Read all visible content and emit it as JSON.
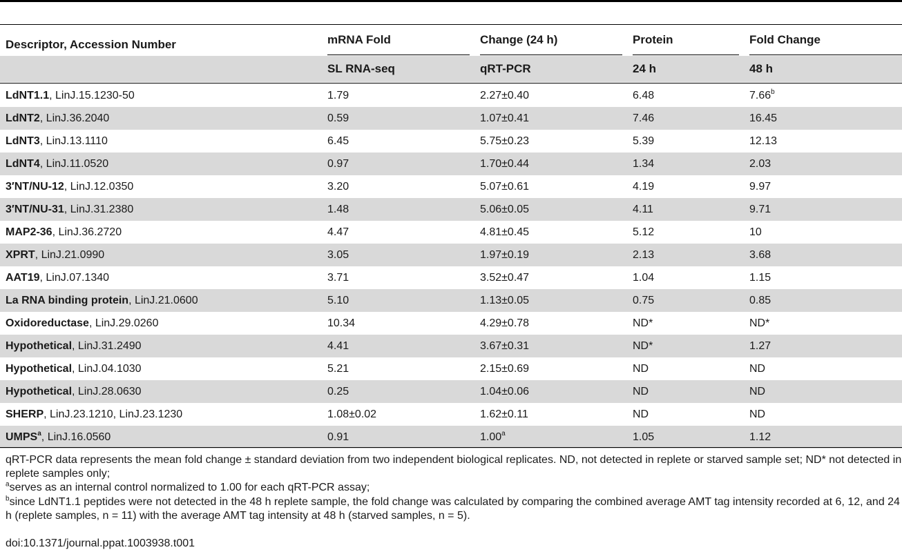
{
  "header": {
    "col0": "Descriptor, Accession Number",
    "group1_a": "mRNA Fold",
    "group1_b": "Change (24 h)",
    "group2_a": "Protein",
    "group2_b": "Fold Change",
    "sub1": "SL RNA-seq",
    "sub2": "qRT-PCR",
    "sub3": "24 h",
    "sub4": "48 h"
  },
  "rows": [
    {
      "name": "LdNT1.1",
      "name_sup": "",
      "acc": ", LinJ.15.1230-50",
      "rnaseq": "1.79",
      "qrt": "2.27±0.40",
      "qrt_sup": "",
      "p24": "6.48",
      "p48": "7.66",
      "p48_sup": "b"
    },
    {
      "name": "LdNT2",
      "name_sup": "",
      "acc": ", LinJ.36.2040",
      "rnaseq": "0.59",
      "qrt": "1.07±0.41",
      "qrt_sup": "",
      "p24": "7.46",
      "p48": "16.45",
      "p48_sup": ""
    },
    {
      "name": "LdNT3",
      "name_sup": "",
      "acc": ", LinJ.13.1110",
      "rnaseq": "6.45",
      "qrt": "5.75±0.23",
      "qrt_sup": "",
      "p24": "5.39",
      "p48": "12.13",
      "p48_sup": ""
    },
    {
      "name": "LdNT4",
      "name_sup": "",
      "acc": ", LinJ.11.0520",
      "rnaseq": "0.97",
      "qrt": "1.70±0.44",
      "qrt_sup": "",
      "p24": "1.34",
      "p48": "2.03",
      "p48_sup": ""
    },
    {
      "name": "3′NT/NU-12",
      "name_sup": "",
      "acc": ", LinJ.12.0350",
      "rnaseq": "3.20",
      "qrt": "5.07±0.61",
      "qrt_sup": "",
      "p24": "4.19",
      "p48": "9.97",
      "p48_sup": ""
    },
    {
      "name": "3′NT/NU-31",
      "name_sup": "",
      "acc": ", LinJ.31.2380",
      "rnaseq": "1.48",
      "qrt": "5.06±0.05",
      "qrt_sup": "",
      "p24": "4.11",
      "p48": "9.71",
      "p48_sup": ""
    },
    {
      "name": "MAP2-36",
      "name_sup": "",
      "acc": ", LinJ.36.2720",
      "rnaseq": "4.47",
      "qrt": "4.81±0.45",
      "qrt_sup": "",
      "p24": "5.12",
      "p48": "10",
      "p48_sup": ""
    },
    {
      "name": "XPRT",
      "name_sup": "",
      "acc": ", LinJ.21.0990",
      "rnaseq": "3.05",
      "qrt": "1.97±0.19",
      "qrt_sup": "",
      "p24": "2.13",
      "p48": "3.68",
      "p48_sup": ""
    },
    {
      "name": "AAT19",
      "name_sup": "",
      "acc": ", LinJ.07.1340",
      "rnaseq": "3.71",
      "qrt": "3.52±0.47",
      "qrt_sup": "",
      "p24": "1.04",
      "p48": "1.15",
      "p48_sup": ""
    },
    {
      "name": "La RNA binding protein",
      "name_sup": "",
      "acc": ", LinJ.21.0600",
      "rnaseq": "5.10",
      "qrt": "1.13±0.05",
      "qrt_sup": "",
      "p24": "0.75",
      "p48": "0.85",
      "p48_sup": ""
    },
    {
      "name": "Oxidoreductase",
      "name_sup": "",
      "acc": ", LinJ.29.0260",
      "rnaseq": "10.34",
      "qrt": "4.29±0.78",
      "qrt_sup": "",
      "p24": "ND*",
      "p48": "ND*",
      "p48_sup": ""
    },
    {
      "name": "Hypothetical",
      "name_sup": "",
      "acc": ", LinJ.31.2490",
      "rnaseq": "4.41",
      "qrt": "3.67±0.31",
      "qrt_sup": "",
      "p24": "ND*",
      "p48": "1.27",
      "p48_sup": ""
    },
    {
      "name": "Hypothetical",
      "name_sup": "",
      "acc": ", LinJ.04.1030",
      "rnaseq": "5.21",
      "qrt": "2.15±0.69",
      "qrt_sup": "",
      "p24": "ND",
      "p48": "ND",
      "p48_sup": ""
    },
    {
      "name": "Hypothetical",
      "name_sup": "",
      "acc": ", LinJ.28.0630",
      "rnaseq": "0.25",
      "qrt": "1.04±0.06",
      "qrt_sup": "",
      "p24": "ND",
      "p48": "ND",
      "p48_sup": ""
    },
    {
      "name": "SHERP",
      "name_sup": "",
      "acc": ", LinJ.23.1210, LinJ.23.1230",
      "rnaseq": "1.08±0.02",
      "qrt": "1.62±0.11",
      "qrt_sup": "",
      "p24": "ND",
      "p48": "ND",
      "p48_sup": ""
    },
    {
      "name": "UMPS",
      "name_sup": "a",
      "acc": ", LinJ.16.0560",
      "rnaseq": "0.91",
      "qrt": "1.00",
      "qrt_sup": "a",
      "p24": "1.05",
      "p48": "1.12",
      "p48_sup": ""
    }
  ],
  "footnotes": {
    "main": "qRT-PCR data represents the mean fold change ± standard deviation from two independent biological replicates. ND, not detected in replete or starved sample set; ND* not detected in replete samples only;",
    "a_mark": "a",
    "a_text": "serves as an internal control normalized to 1.00 for each qRT-PCR assay;",
    "b_mark": "b",
    "b_text": "since LdNT1.1 peptides were not detected in the 48 h replete sample, the fold change was calculated by comparing the combined average AMT tag intensity recorded at 6, 12, and 24 h (replete samples, n = 11) with the average AMT tag intensity at 48 h (starved samples, n = 5).",
    "doi": "doi:10.1371/journal.ppat.1003938.t001"
  }
}
